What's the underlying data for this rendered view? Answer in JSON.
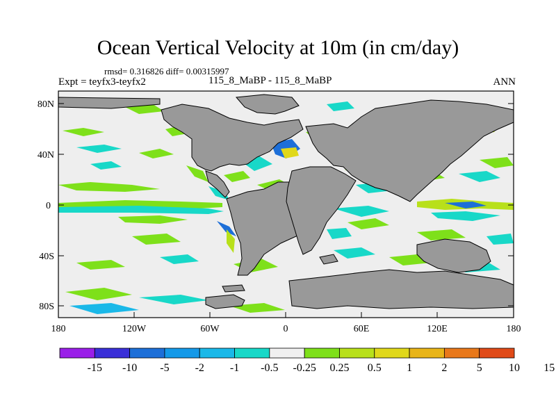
{
  "title": "Ocean Vertical Velocity at 10m (in cm/day)",
  "stats_text": "rmsd= 0.316826  diff= 0.00315997",
  "expt_label": "Expt = teyfx3-teyfx2",
  "case_label": "115_8_MaBP - 115_8_MaBP",
  "season_label": "ANN",
  "y_ticks": [
    "80N",
    "40N",
    "0",
    "40S",
    "80S"
  ],
  "x_ticks": [
    "180",
    "120W",
    "60W",
    "0",
    "60E",
    "120E",
    "180"
  ],
  "colorbar_labels": [
    "-15",
    "-10",
    "-5",
    "-2",
    "-1",
    "-0.5",
    "-0.25",
    "0.25",
    "0.5",
    "1",
    "2",
    "5",
    "10",
    "15"
  ],
  "colorbar_colors": [
    "#9a1fe8",
    "#3a2fd8",
    "#1d6fd8",
    "#1499e8",
    "#1ab8e8",
    "#18d8c8",
    "#f0f0f0",
    "#7ee01a",
    "#b8e01a",
    "#e0d81a",
    "#e8b418",
    "#e8781a",
    "#e04a18"
  ],
  "colors": {
    "land": "#999999",
    "ocean": "#eeeeee",
    "pos_light": "#7ee01a",
    "pos_mid": "#b8e01a",
    "neg_light": "#18d8c8",
    "neg_mid": "#1ab8e8",
    "neg_dark": "#1d6fd8"
  }
}
